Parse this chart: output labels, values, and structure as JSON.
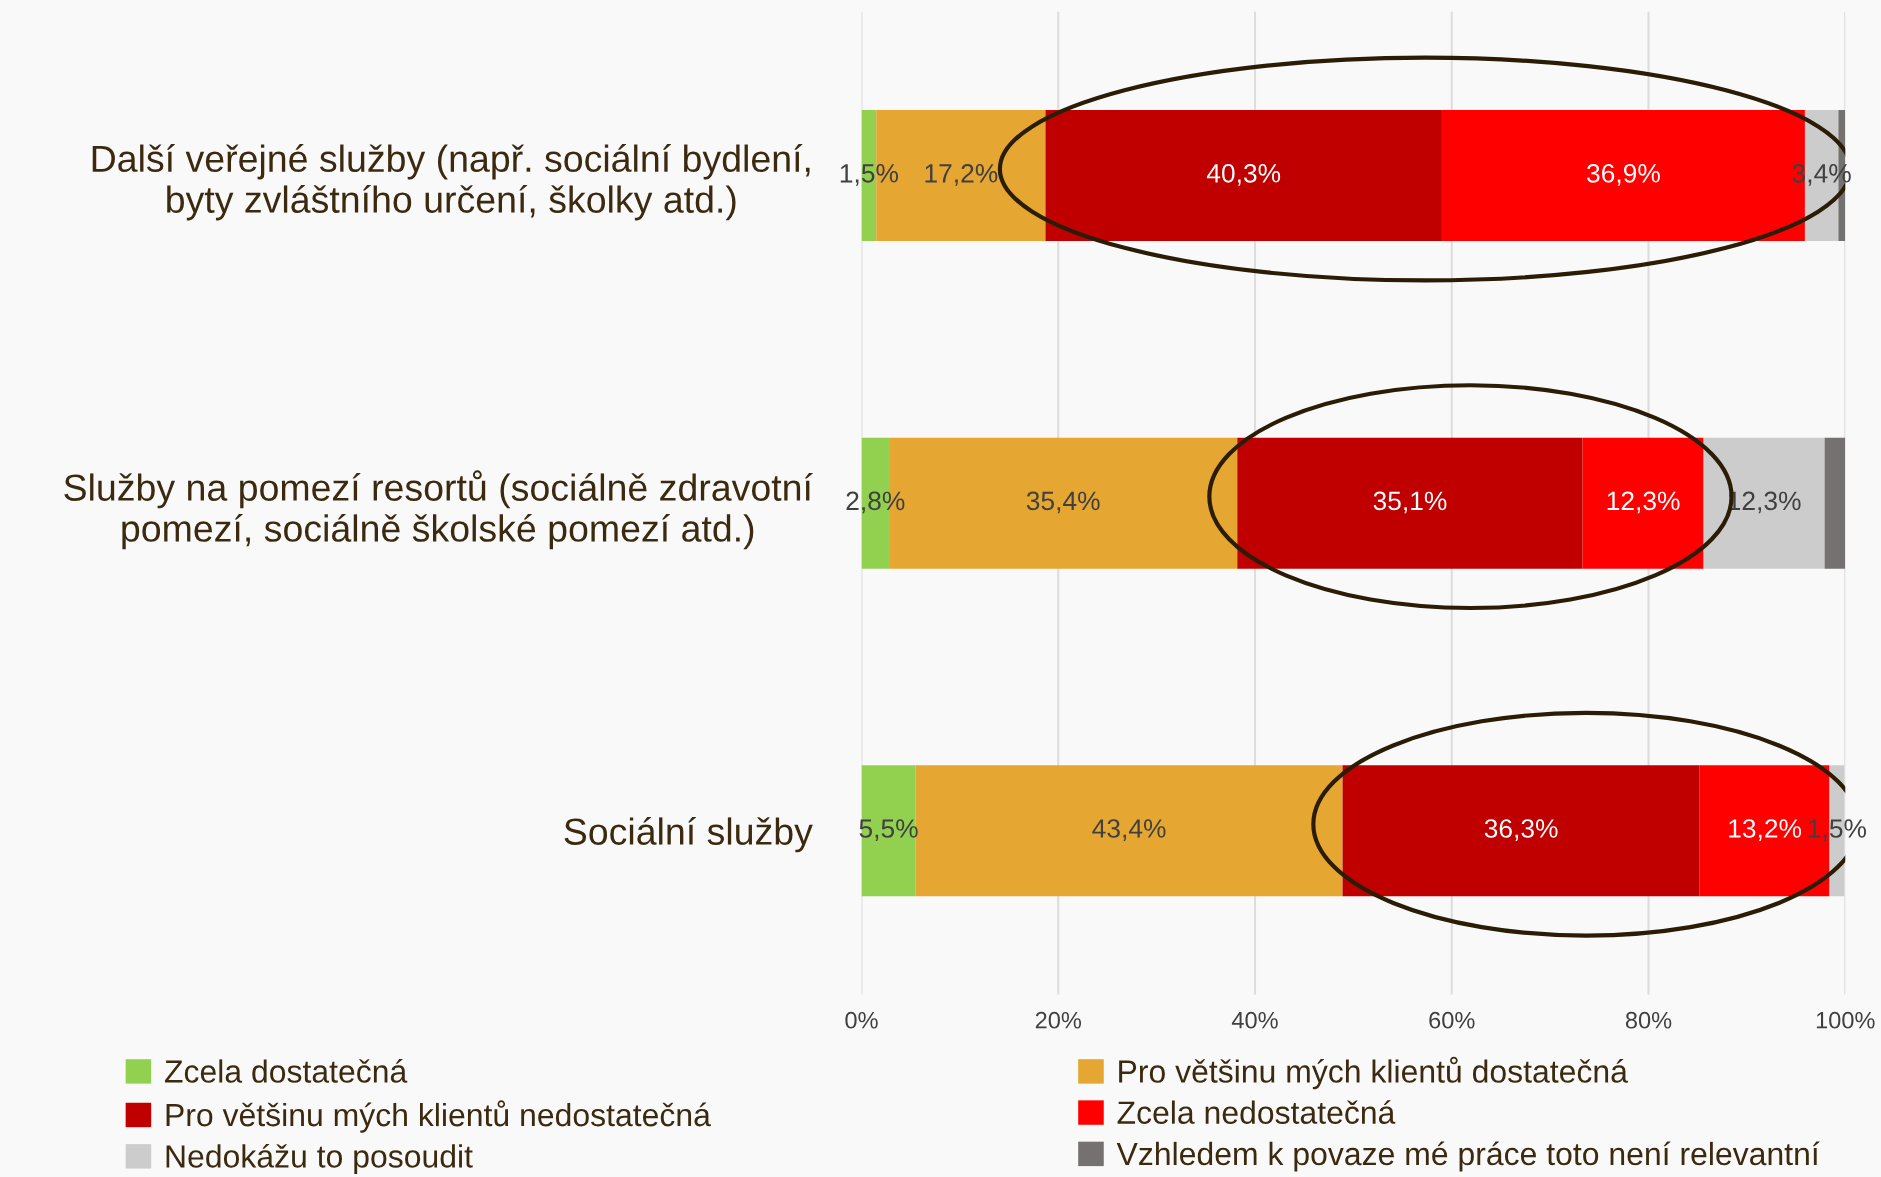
{
  "chart_data": {
    "type": "bar",
    "orientation": "horizontal",
    "stacked": true,
    "categories": [
      "Další veřejné služby (např. sociální bydlení,\nbyty zvláštního určení, školky atd.)",
      "Služby na pomezí resortů (sociálně zdravotní\npomezí, sociálně školské pomezí atd.)",
      "Sociální služby"
    ],
    "series": [
      {
        "name": "Zcela dostatečná",
        "color": "#92d050",
        "values": [
          1.5,
          2.8,
          5.5
        ],
        "value_labels": [
          "1,5%",
          "2,8%",
          "5,5%"
        ]
      },
      {
        "name": "Pro většinu mých klientů dostatečná",
        "color": "#e5a632",
        "values": [
          17.2,
          35.4,
          43.4
        ],
        "value_labels": [
          "17,2%",
          "35,4%",
          "43,4%"
        ]
      },
      {
        "name": "Pro většinu mých klientů nedostatečná",
        "color": "#c00000",
        "values": [
          40.3,
          35.1,
          36.3
        ],
        "value_labels": [
          "40,3%",
          "35,1%",
          "36,3%"
        ]
      },
      {
        "name": "Zcela nedostatečná",
        "color": "#ff0000",
        "values": [
          36.9,
          12.3,
          13.2
        ],
        "value_labels": [
          "36,9%",
          "12,3%",
          "13,2%"
        ]
      },
      {
        "name": "Nedokážu to posoudit",
        "color": "#cccccc",
        "values": [
          3.4,
          12.3,
          1.5
        ],
        "value_labels": [
          "3,4%",
          "12,3%",
          "1,5%"
        ]
      },
      {
        "name": "Vzhledem k povaze mé práce toto není relevantní",
        "color": "#767171",
        "values": [
          0.7,
          2.1,
          0
        ],
        "value_labels": [
          null,
          null,
          null
        ]
      }
    ],
    "xlim": [
      0,
      100
    ],
    "xticks": [
      {
        "value": 0,
        "label": "0%"
      },
      {
        "value": 20,
        "label": "20%"
      },
      {
        "value": 40,
        "label": "40%"
      },
      {
        "value": 60,
        "label": "60%"
      },
      {
        "value": 80,
        "label": "80%"
      },
      {
        "value": 100,
        "label": "100%"
      }
    ],
    "grid": "x",
    "legend": "bottom"
  }
}
